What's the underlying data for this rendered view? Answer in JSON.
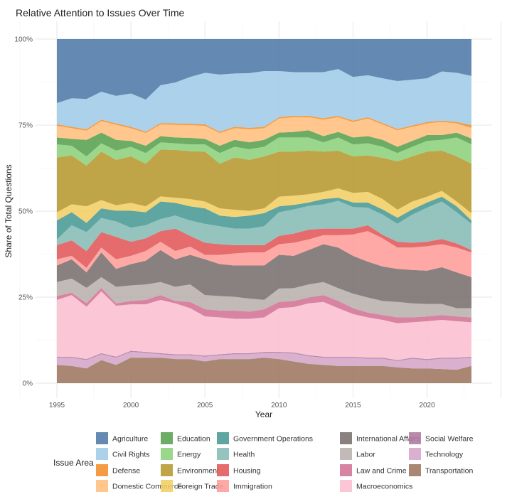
{
  "chart_data": {
    "type": "area",
    "stacked": "percent",
    "title": "Relative Attention to Issues Over Time",
    "xlabel": "Year",
    "ylabel": "Share of Total Questions",
    "xlim": [
      1995,
      2023
    ],
    "ylim": [
      0,
      100
    ],
    "x_ticks": [
      1995,
      2000,
      2005,
      2010,
      2015,
      2020
    ],
    "y_ticks": [
      "0%",
      "25%",
      "50%",
      "75%",
      "100%"
    ],
    "grid": true,
    "legend_title": "Issue Area",
    "legend_position": "bottom",
    "x": [
      1995,
      1996,
      1997,
      1998,
      1999,
      2000,
      2001,
      2002,
      2003,
      2004,
      2005,
      2006,
      2007,
      2008,
      2009,
      2010,
      2011,
      2012,
      2013,
      2014,
      2015,
      2016,
      2017,
      2018,
      2019,
      2020,
      2021,
      2022,
      2023
    ],
    "series": [
      {
        "name": "Transportation",
        "color": "#9d7660",
        "values": [
          5.3,
          5.0,
          4.3,
          6.7,
          5.3,
          7.4,
          7.4,
          7.4,
          7.0,
          7.0,
          6.3,
          7.0,
          7.0,
          7.0,
          7.4,
          7.0,
          6.3,
          5.6,
          5.3,
          5.0,
          5.0,
          5.0,
          5.0,
          4.6,
          4.3,
          4.3,
          4.1,
          3.9,
          5.0
        ]
      },
      {
        "name": "Technology",
        "color": "#d4a6c8",
        "values": [
          2.1,
          2.4,
          2.4,
          1.7,
          2.1,
          1.7,
          1.4,
          1.0,
          1.1,
          1.1,
          1.4,
          1.1,
          1.4,
          1.4,
          1.4,
          1.8,
          2.3,
          2.2,
          2.1,
          2.4,
          2.4,
          2.1,
          2.1,
          1.8,
          2.8,
          2.4,
          3.0,
          3.2,
          2.4
        ]
      },
      {
        "name": "Social Welfare",
        "color": "#b07aa1",
        "values": [
          0.3,
          0.3,
          0.3,
          0.3,
          0.3,
          0.3,
          0.3,
          0.3,
          0.3,
          0.3,
          0.3,
          0.3,
          0.3,
          0.3,
          0.3,
          0.3,
          0.3,
          0.3,
          0.3,
          0.3,
          0.3,
          0.3,
          0.3,
          0.3,
          0.3,
          0.3,
          0.3,
          0.3,
          0.3
        ]
      },
      {
        "name": "Macroeconomics",
        "color": "#fabfd2",
        "values": [
          16.5,
          17.9,
          15.2,
          18.0,
          14.8,
          13.5,
          13.8,
          15.5,
          14.8,
          13.4,
          11.4,
          10.7,
          10.0,
          10.0,
          10.0,
          12.7,
          13.2,
          15.1,
          15.9,
          14.1,
          12.4,
          11.7,
          11.0,
          10.7,
          10.3,
          11.0,
          11.0,
          10.6,
          10.0
        ]
      },
      {
        "name": "Law and Crime",
        "color": "#d37295",
        "values": [
          1.1,
          0.7,
          1.0,
          1.0,
          0.7,
          1.0,
          1.3,
          1.4,
          0.7,
          1.8,
          2.1,
          2.0,
          2.4,
          2.1,
          2.4,
          1.8,
          1.8,
          1.7,
          2.0,
          2.1,
          1.7,
          1.4,
          1.4,
          1.7,
          1.4,
          1.4,
          1.4,
          1.4,
          1.4
        ]
      },
      {
        "name": "Labor",
        "color": "#bab0ac",
        "values": [
          4.1,
          4.1,
          4.5,
          3.1,
          4.8,
          4.5,
          4.5,
          3.8,
          4.1,
          5.1,
          4.1,
          4.2,
          4.0,
          3.8,
          2.7,
          3.9,
          3.7,
          3.8,
          3.8,
          3.7,
          4.2,
          4.4,
          4.1,
          4.5,
          4.1,
          3.6,
          3.2,
          2.4,
          2.7
        ]
      },
      {
        "name": "International Affairs",
        "color": "#79706e",
        "values": [
          4.8,
          5.6,
          4.5,
          7.2,
          5.2,
          6.2,
          6.9,
          9.3,
          8.0,
          8.6,
          10.4,
          9.3,
          9.1,
          9.6,
          10.0,
          9.8,
          9.4,
          10.0,
          11.0,
          11.8,
          11.0,
          10.4,
          10.0,
          9.6,
          9.7,
          9.7,
          10.7,
          10.4,
          9.0
        ]
      },
      {
        "name": "Immigration",
        "color": "#ff9d9a",
        "values": [
          1.8,
          1.0,
          1.3,
          1.4,
          2.8,
          2.4,
          2.8,
          2.4,
          2.4,
          2.4,
          1.3,
          2.7,
          3.5,
          3.8,
          3.8,
          3.1,
          3.8,
          3.1,
          2.6,
          3.6,
          6.2,
          8.9,
          8.2,
          6.2,
          6.5,
          7.1,
          6.7,
          7.2,
          7.2
        ]
      },
      {
        "name": "Housing",
        "color": "#e15759",
        "values": [
          4.1,
          4.5,
          4.9,
          4.5,
          6.5,
          4.1,
          3.7,
          3.1,
          6.5,
          3.1,
          3.5,
          3.1,
          2.4,
          2.1,
          2.1,
          2.4,
          2.7,
          2.8,
          1.9,
          1.9,
          1.7,
          1.7,
          1.0,
          1.7,
          1.4,
          1.3,
          1.5,
          1.2,
          0.7
        ]
      },
      {
        "name": "Health",
        "color": "#86bcb6",
        "values": [
          1.7,
          4.4,
          5.5,
          4.1,
          4.5,
          4.1,
          3.8,
          3.5,
          3.8,
          4.5,
          5.5,
          5.2,
          4.8,
          4.8,
          5.5,
          6.9,
          7.0,
          6.9,
          7.1,
          8.1,
          6.3,
          5.1,
          5.9,
          5.2,
          8.2,
          9.9,
          10.9,
          9.1,
          7.6
        ]
      },
      {
        "name": "Government Operations",
        "color": "#499894",
        "values": [
          5.5,
          3.8,
          2.7,
          2.8,
          3.1,
          4.9,
          3.8,
          5.1,
          3.7,
          4.1,
          4.5,
          3.1,
          3.4,
          3.8,
          3.8,
          1.7,
          1.3,
          1.0,
          1.5,
          0.9,
          1.3,
          1.5,
          1.5,
          1.8,
          1.5,
          1.5,
          1.4,
          1.7,
          1.0
        ]
      },
      {
        "name": "Foreign Trade",
        "color": "#f1ce63",
        "values": [
          2.4,
          2.3,
          4.8,
          2.4,
          1.6,
          2.3,
          1.7,
          1.5,
          1.5,
          2.1,
          2.0,
          2.1,
          2.1,
          1.4,
          1.4,
          2.8,
          2.7,
          2.4,
          2.1,
          2.7,
          2.8,
          3.1,
          3.0,
          2.3,
          2.3,
          1.7,
          1.7,
          1.4,
          2.1
        ]
      },
      {
        "name": "Environment",
        "color": "#b6992d",
        "values": [
          15.9,
          14.2,
          11.8,
          14.1,
          13.2,
          13.5,
          12.4,
          13.6,
          13.9,
          13.9,
          14.5,
          13.0,
          15.2,
          14.8,
          15.1,
          13.1,
          12.8,
          12.7,
          11.7,
          11.0,
          10.6,
          10.6,
          12.0,
          14.1,
          13.1,
          13.1,
          11.7,
          13.1,
          14.4
        ]
      },
      {
        "name": "Energy",
        "color": "#8cd17d",
        "values": [
          3.8,
          2.8,
          2.7,
          2.4,
          2.7,
          2.8,
          3.1,
          2.1,
          1.9,
          2.0,
          2.1,
          3.1,
          3.1,
          3.1,
          2.8,
          4.1,
          4.1,
          3.8,
          2.7,
          3.8,
          3.5,
          3.5,
          3.2,
          2.4,
          2.8,
          3.1,
          3.1,
          5.5,
          5.6
        ]
      },
      {
        "name": "Education",
        "color": "#59a14f",
        "values": [
          2.0,
          2.0,
          4.8,
          3.1,
          3.1,
          1.7,
          2.1,
          1.8,
          1.7,
          1.9,
          1.6,
          2.1,
          2.0,
          2.0,
          2.0,
          1.4,
          1.6,
          2.1,
          1.8,
          1.6,
          2.0,
          2.1,
          2.0,
          1.8,
          1.7,
          1.7,
          1.4,
          1.4,
          1.7
        ]
      },
      {
        "name": "Domestic Commerce",
        "color": "#ffbe7d",
        "values": [
          3.4,
          3.1,
          2.7,
          3.4,
          4.4,
          3.7,
          3.7,
          3.4,
          3.7,
          3.7,
          3.8,
          3.7,
          3.4,
          3.8,
          3.4,
          4.1,
          4.3,
          3.8,
          4.8,
          4.3,
          4.5,
          5.1,
          4.5,
          4.8,
          4.1,
          3.4,
          3.8,
          2.7,
          3.1
        ]
      },
      {
        "name": "Defense",
        "color": "#f28e2b",
        "values": [
          0.4,
          0.4,
          0.4,
          0.4,
          0.4,
          0.4,
          0.4,
          0.4,
          0.4,
          0.4,
          0.4,
          0.4,
          0.4,
          0.4,
          0.4,
          0.4,
          0.4,
          0.4,
          0.4,
          0.4,
          0.4,
          0.4,
          0.4,
          0.4,
          0.4,
          0.4,
          0.4,
          0.4,
          0.8
        ]
      },
      {
        "name": "Civil Rights",
        "color": "#a0cbe8",
        "values": [
          6.2,
          8.3,
          8.8,
          8.1,
          8.0,
          9.7,
          9.3,
          11.0,
          11.9,
          13.6,
          15.0,
          16.6,
          15.5,
          15.9,
          16.2,
          13.4,
          12.7,
          12.7,
          13.4,
          13.6,
          12.7,
          12.2,
          13.0,
          13.9,
          13.3,
          12.7,
          14.3,
          14.3,
          14.3
        ]
      },
      {
        "name": "Agriculture",
        "color": "#4e79a7",
        "values": [
          18.6,
          17.2,
          17.4,
          15.3,
          16.5,
          15.8,
          17.6,
          13.4,
          12.6,
          11.0,
          9.8,
          10.3,
          10.0,
          9.9,
          9.3,
          9.3,
          9.6,
          9.6,
          9.6,
          8.7,
          11.0,
          10.5,
          11.4,
          12.2,
          11.8,
          11.4,
          9.4,
          9.8,
          10.7
        ]
      }
    ],
    "legend_order": [
      "Agriculture",
      "Civil Rights",
      "Defense",
      "Domestic Commerce",
      "Education",
      "Energy",
      "Environment",
      "Foreign Trade",
      "Government Operations",
      "Health",
      "Housing",
      "Immigration",
      "International Affairs",
      "Labor",
      "Law and Crime",
      "Macroeconomics",
      "Social Welfare",
      "Technology",
      "Transportation"
    ]
  }
}
